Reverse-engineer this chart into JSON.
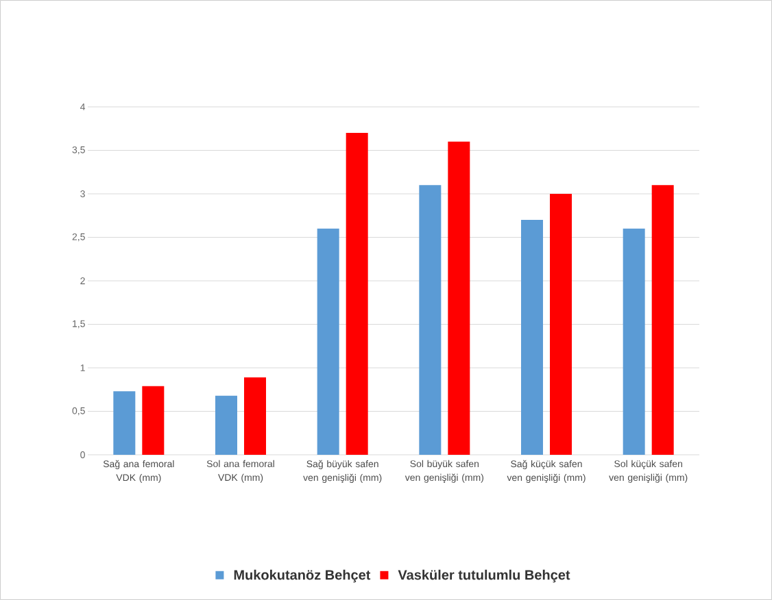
{
  "chart_data": {
    "type": "bar",
    "categories": [
      "Sağ ana femoral VDK (mm)",
      "Sol ana femoral VDK (mm)",
      "Sağ büyük safen ven genişliği (mm)",
      "Sol büyük safen ven genişliği (mm)",
      "Sağ küçük safen ven genişliği (mm)",
      "Sol küçük safen ven genişliği (mm)"
    ],
    "series": [
      {
        "name": "Mukokutanöz Behçet",
        "color": "#5b9bd5",
        "values": [
          0.73,
          0.68,
          2.6,
          3.1,
          2.7,
          2.6
        ]
      },
      {
        "name": "Vasküler tutulumlu Behçet",
        "color": "#ff0000",
        "values": [
          0.79,
          0.89,
          3.7,
          3.6,
          3.0,
          3.1
        ]
      }
    ],
    "ylim": [
      0,
      4
    ],
    "yticks": [
      0,
      {
        "value": 0.5,
        "label": "0,5"
      },
      1,
      {
        "value": 1.5,
        "label": "1,5"
      },
      2,
      {
        "value": 2.5,
        "label": "2,5"
      },
      3,
      {
        "value": 3.5,
        "label": "3,5"
      },
      4
    ],
    "grid": "y",
    "legend": "bottom"
  }
}
